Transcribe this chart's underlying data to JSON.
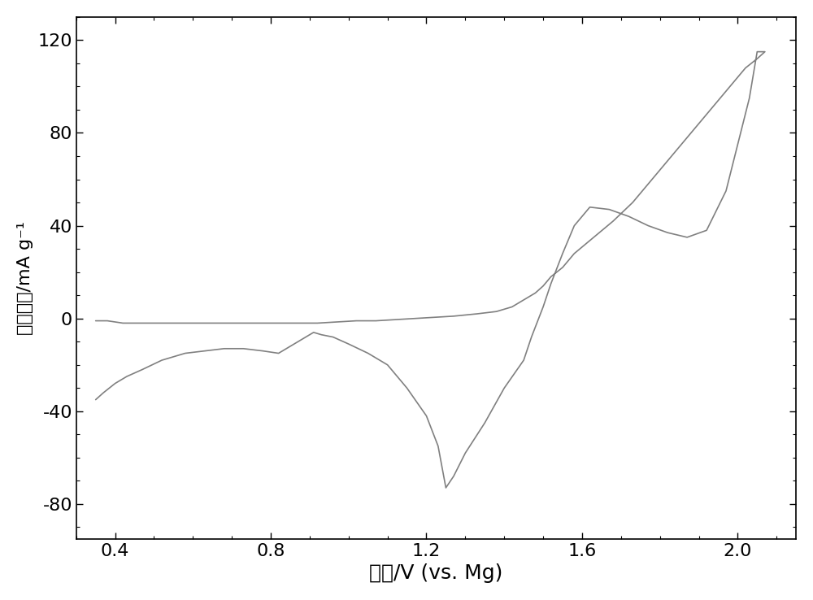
{
  "title": "",
  "xlabel": "电压/V (vs. Mg)",
  "ylabel": "电流密度/mA g⁻¹",
  "xlim": [
    0.3,
    2.15
  ],
  "ylim": [
    -95,
    130
  ],
  "xticks": [
    0.4,
    0.8,
    1.2,
    1.6,
    2.0
  ],
  "yticks": [
    -80,
    -40,
    0,
    40,
    80,
    120
  ],
  "line_color": "#808080",
  "line_width": 1.2,
  "background_color": "#ffffff",
  "xlabel_fontsize": 18,
  "ylabel_fontsize": 16,
  "tick_fontsize": 16,
  "cv_x": [
    0.35,
    0.37,
    0.4,
    0.43,
    0.47,
    0.52,
    0.58,
    0.63,
    0.68,
    0.73,
    0.78,
    0.82,
    0.85,
    0.87,
    0.89,
    0.91,
    0.93,
    0.96,
    1.0,
    1.05,
    1.1,
    1.15,
    1.2,
    1.23,
    1.25,
    1.27,
    1.3,
    1.35,
    1.4,
    1.45,
    1.47,
    1.5,
    1.52,
    1.55,
    1.58,
    1.62,
    1.67,
    1.72,
    1.77,
    1.82,
    1.87,
    1.92,
    1.97,
    2.0,
    2.03,
    2.05,
    2.07,
    2.05,
    2.02,
    1.98,
    1.93,
    1.88,
    1.83,
    1.78,
    1.73,
    1.68,
    1.63,
    1.58,
    1.55,
    1.52,
    1.5,
    1.48,
    1.45,
    1.42,
    1.38,
    1.33,
    1.27,
    1.22,
    1.17,
    1.12,
    1.07,
    1.02,
    0.97,
    0.92,
    0.87,
    0.82,
    0.78,
    0.73,
    0.68,
    0.62,
    0.57,
    0.52,
    0.47,
    0.42,
    0.38,
    0.35
  ],
  "cv_y": [
    -35,
    -32,
    -28,
    -25,
    -22,
    -18,
    -15,
    -14,
    -13,
    -13,
    -14,
    -15,
    -12,
    -10,
    -8,
    -6,
    -7,
    -8,
    -11,
    -15,
    -20,
    -30,
    -42,
    -55,
    -73,
    -68,
    -58,
    -45,
    -30,
    -18,
    -8,
    5,
    15,
    28,
    40,
    48,
    47,
    44,
    40,
    37,
    35,
    38,
    55,
    75,
    95,
    115,
    115,
    112,
    108,
    100,
    90,
    80,
    70,
    60,
    50,
    42,
    35,
    28,
    22,
    18,
    14,
    11,
    8,
    5,
    3,
    2,
    1,
    0.5,
    0,
    -0.5,
    -1,
    -1,
    -1.5,
    -2,
    -2,
    -2,
    -2,
    -2,
    -2,
    -2,
    -2,
    -2,
    -2,
    -2,
    -1,
    -1
  ]
}
